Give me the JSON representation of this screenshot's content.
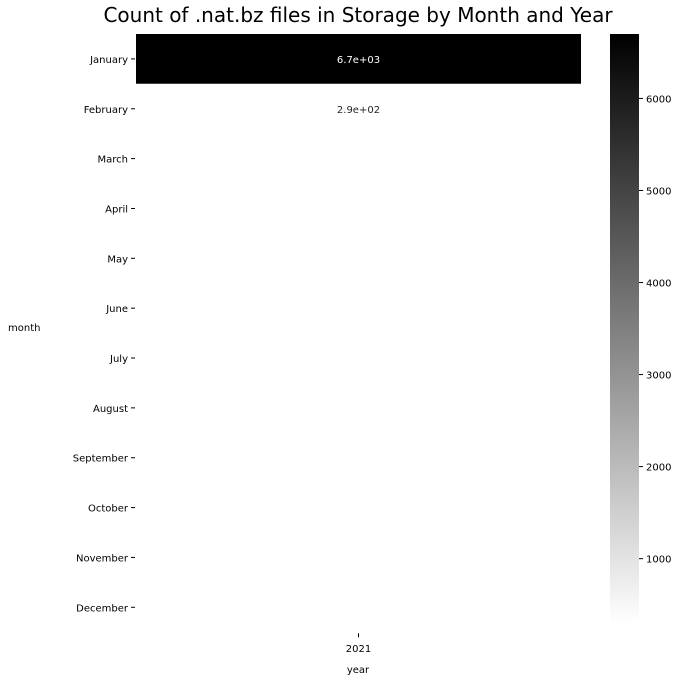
{
  "chart_data": {
    "type": "heatmap",
    "title": "Count of .nat.bz files in Storage by Month and Year",
    "xlabel": "year",
    "ylabel": "month",
    "x_categories": [
      "2021"
    ],
    "y_categories": [
      "January",
      "February",
      "March",
      "April",
      "May",
      "June",
      "July",
      "August",
      "September",
      "October",
      "November",
      "December"
    ],
    "values": [
      [
        6700
      ],
      [
        290
      ],
      [
        null
      ],
      [
        null
      ],
      [
        null
      ],
      [
        null
      ],
      [
        null
      ],
      [
        null
      ],
      [
        null
      ],
      [
        null
      ],
      [
        null
      ],
      [
        null
      ]
    ],
    "annotations": [
      [
        "6.7e+03"
      ],
      [
        "2.9e+02"
      ],
      [
        ""
      ],
      [
        ""
      ],
      [
        ""
      ],
      [
        ""
      ],
      [
        ""
      ],
      [
        ""
      ],
      [
        ""
      ],
      [
        ""
      ],
      [
        ""
      ],
      [
        ""
      ]
    ],
    "colormap": {
      "low_color": "#ffffff",
      "high_color": "#000000",
      "vmin": 290,
      "vmax": 6700
    },
    "colorbar_ticks": [
      1000,
      2000,
      3000,
      4000,
      5000,
      6000
    ],
    "colorbar_tick_labels": [
      "1000",
      "2000",
      "3000",
      "4000",
      "5000",
      "6000"
    ],
    "grid": false,
    "legend": "colorbar-right"
  }
}
